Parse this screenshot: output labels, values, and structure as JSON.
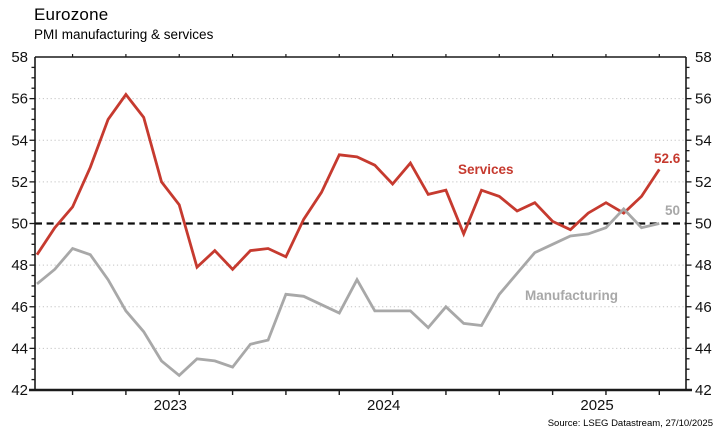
{
  "header": {
    "title": "Eurozone",
    "subtitle": "PMI manufacturing & services"
  },
  "source_note": "Source: LSEG Datastream, 27/10/2025",
  "colors": {
    "services": "#c63a2f",
    "manufacturing": "#a8a8a8",
    "axis": "#1a1a1a",
    "grid": "#c3c3c3",
    "text": "#111111"
  },
  "annotations": {
    "services_label": "Services",
    "manufacturing_label": "Manufacturing",
    "services_end_value": "52.6",
    "manufacturing_end_value": "50"
  },
  "chart_data": {
    "type": "line",
    "title": "Eurozone",
    "subtitle": "PMI manufacturing & services",
    "ylim": [
      42,
      58
    ],
    "y_ticks": [
      42,
      44,
      46,
      48,
      50,
      52,
      54,
      56,
      58
    ],
    "y_minor_tick_step": 0.5,
    "reference_line": 50,
    "grid": "dotted horizontal gridlines at even values, dashed black line at 50",
    "legend_position": "inline labels on chart",
    "x_year_labels": [
      "2023",
      "2024",
      "2025"
    ],
    "x": [
      "2022-11",
      "2022-12",
      "2023-01",
      "2023-02",
      "2023-03",
      "2023-04",
      "2023-05",
      "2023-06",
      "2023-07",
      "2023-08",
      "2023-09",
      "2023-10",
      "2023-11",
      "2023-12",
      "2024-01",
      "2024-02",
      "2024-03",
      "2024-04",
      "2024-05",
      "2024-06",
      "2024-07",
      "2024-08",
      "2024-09",
      "2024-10",
      "2024-11",
      "2024-12",
      "2025-01",
      "2025-02",
      "2025-03",
      "2025-04",
      "2025-05",
      "2025-06",
      "2025-07",
      "2025-08",
      "2025-09",
      "2025-10"
    ],
    "series": [
      {
        "name": "Services",
        "color": "#c63a2f",
        "end_label": "52.6",
        "values": [
          48.5,
          49.8,
          50.8,
          52.7,
          55.0,
          56.2,
          55.1,
          52.0,
          50.9,
          47.9,
          48.7,
          47.8,
          48.7,
          48.8,
          48.4,
          50.2,
          51.5,
          53.3,
          53.2,
          52.8,
          51.9,
          52.9,
          51.4,
          51.6,
          49.5,
          51.6,
          51.3,
          50.6,
          51.0,
          50.1,
          49.7,
          50.5,
          51.0,
          50.5,
          51.3,
          52.6
        ]
      },
      {
        "name": "Manufacturing",
        "color": "#a8a8a8",
        "end_label": "50",
        "values": [
          47.1,
          47.8,
          48.8,
          48.5,
          47.3,
          45.8,
          44.8,
          43.4,
          42.7,
          43.5,
          43.4,
          43.1,
          44.2,
          44.4,
          46.6,
          46.5,
          46.1,
          45.7,
          47.3,
          45.8,
          45.8,
          45.8,
          45.0,
          46.0,
          45.2,
          45.1,
          46.6,
          47.6,
          48.6,
          49.0,
          49.4,
          49.5,
          49.8,
          50.7,
          49.8,
          50.0
        ]
      }
    ]
  }
}
